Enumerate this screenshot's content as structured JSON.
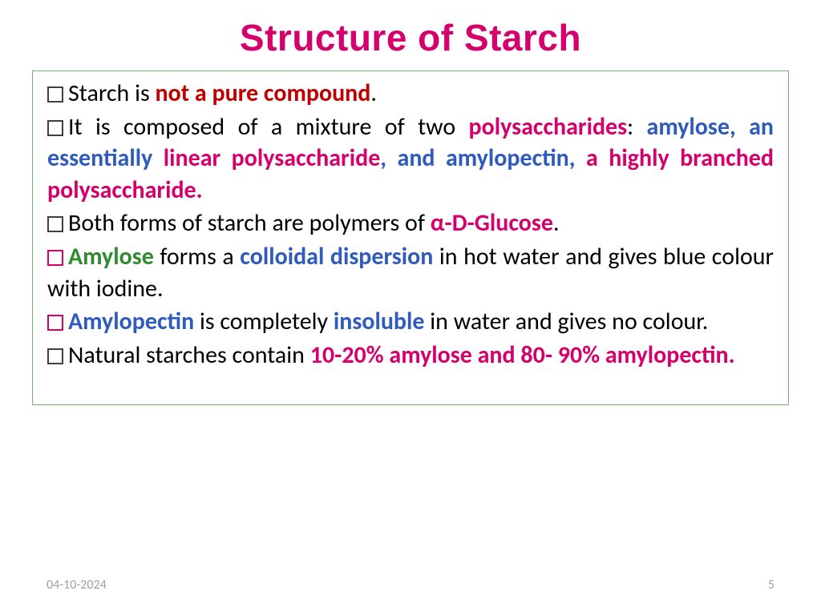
{
  "title": {
    "text": "Structure of Starch",
    "color": "#d6006c",
    "fontsize": 46
  },
  "content_box": {
    "border_color": "#6fb36f",
    "border_width": 1,
    "fontsize": 30,
    "line_height": 1.32
  },
  "colors": {
    "black": "#000000",
    "darkred": "#c00000",
    "magenta": "#d6006c",
    "blue": "#2e5bbd",
    "green": "#2e8b2e",
    "footer_gray": "#a0a0a0",
    "bullet_border_blue": "#c090c0",
    "bullet_border_magenta": "#d6006c",
    "bullet_border_black": "#404040"
  },
  "bullets": [
    {
      "bullet_color": "#404040",
      "segments": [
        {
          "text": "Starch is ",
          "color": "#000000",
          "bold": false
        },
        {
          "text": "not a pure compound",
          "color": "#c00000",
          "bold": true
        },
        {
          "text": ".",
          "color": "#000000",
          "bold": false
        }
      ]
    },
    {
      "bullet_color": "#404040",
      "segments": [
        {
          "text": "It is composed of a mixture of two ",
          "color": "#000000",
          "bold": false
        },
        {
          "text": "polysaccharides",
          "color": "#d6006c",
          "bold": true
        },
        {
          "text": ": ",
          "color": "#000000",
          "bold": false
        },
        {
          "text": "amylose, an essentially ",
          "color": "#2e5bbd",
          "bold": true
        },
        {
          "text": "linear polysaccharide",
          "color": "#d6006c",
          "bold": true
        },
        {
          "text": ", and amylopectin, ",
          "color": "#2e5bbd",
          "bold": true
        },
        {
          "text": "a highly branched polysaccharide.",
          "color": "#d6006c",
          "bold": true
        }
      ]
    },
    {
      "bullet_color": "#404040",
      "segments": [
        {
          "text": "Both forms of starch are polymers of ",
          "color": "#000000",
          "bold": false
        },
        {
          "text": "α-D-Glucose",
          "color": "#d6006c",
          "bold": true
        },
        {
          "text": ".",
          "color": "#000000",
          "bold": false
        }
      ]
    },
    {
      "bullet_color": "#d6006c",
      "segments": [
        {
          "text": "Amylose",
          "color": "#2e8b2e",
          "bold": true
        },
        {
          "text": " forms a ",
          "color": "#000000",
          "bold": false
        },
        {
          "text": "colloidal dispersion",
          "color": "#2e5bbd",
          "bold": true
        },
        {
          "text": " in hot water and gives blue colour with iodine.",
          "color": "#000000",
          "bold": false
        }
      ]
    },
    {
      "bullet_color": "#d6006c",
      "segments": [
        {
          "text": "Amylopectin",
          "color": "#2e5bbd",
          "bold": true
        },
        {
          "text": " is completely ",
          "color": "#000000",
          "bold": false
        },
        {
          "text": "insoluble",
          "color": "#2e5bbd",
          "bold": true
        },
        {
          "text": " in water and gives no colour.",
          "color": "#000000",
          "bold": false
        }
      ]
    },
    {
      "bullet_color": "#404040",
      "segments": [
        {
          "text": "Natural starches contain ",
          "color": "#000000",
          "bold": false
        },
        {
          "text": "10-20% amylose and 80- 90% amylopectin.",
          "color": "#d6006c",
          "bold": true
        }
      ]
    }
  ],
  "footer": {
    "date": "04-10-2024",
    "page": "5",
    "color": "#a0a0a0",
    "fontsize": 16
  }
}
